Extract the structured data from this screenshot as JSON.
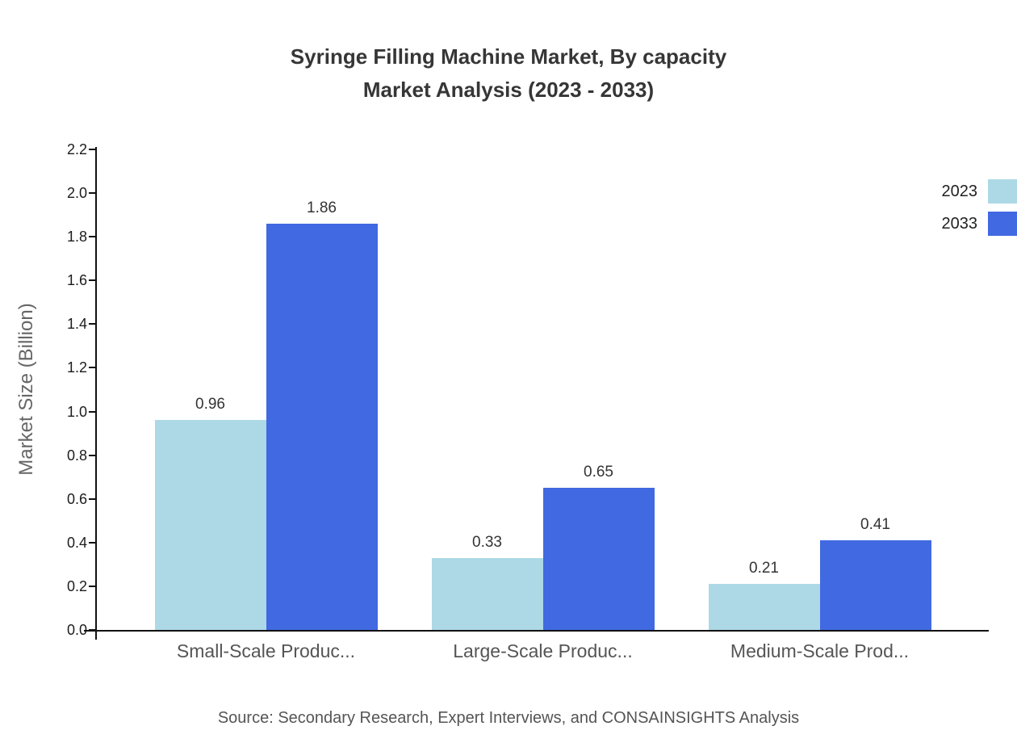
{
  "title": {
    "line1": "Syringe Filling Machine Market, By capacity",
    "line2": "Market Analysis (2023 - 2033)"
  },
  "chart_data": {
    "type": "bar",
    "categories": [
      "Small-Scale Produc...",
      "Large-Scale Produc...",
      "Medium-Scale Prod..."
    ],
    "series": [
      {
        "name": "2023",
        "color": "#add8e6",
        "values": [
          0.96,
          0.33,
          0.21
        ]
      },
      {
        "name": "2033",
        "color": "#4169e1",
        "values": [
          1.86,
          0.65,
          0.41
        ]
      }
    ],
    "xlabel": "",
    "ylabel": "Market Size (Billion)",
    "ylim": [
      0,
      2.2
    ],
    "ytick_labels": [
      "0.0",
      "0.2",
      "0.4",
      "0.6",
      "0.8",
      "1.0",
      "1.2",
      "1.4",
      "1.6",
      "1.8",
      "2.0",
      "2.2"
    ],
    "grid": false,
    "legend_position": "top-right",
    "axis_color": "#111111"
  },
  "source": "Source: Secondary Research, Expert Interviews, and CONSAINSIGHTS Analysis"
}
